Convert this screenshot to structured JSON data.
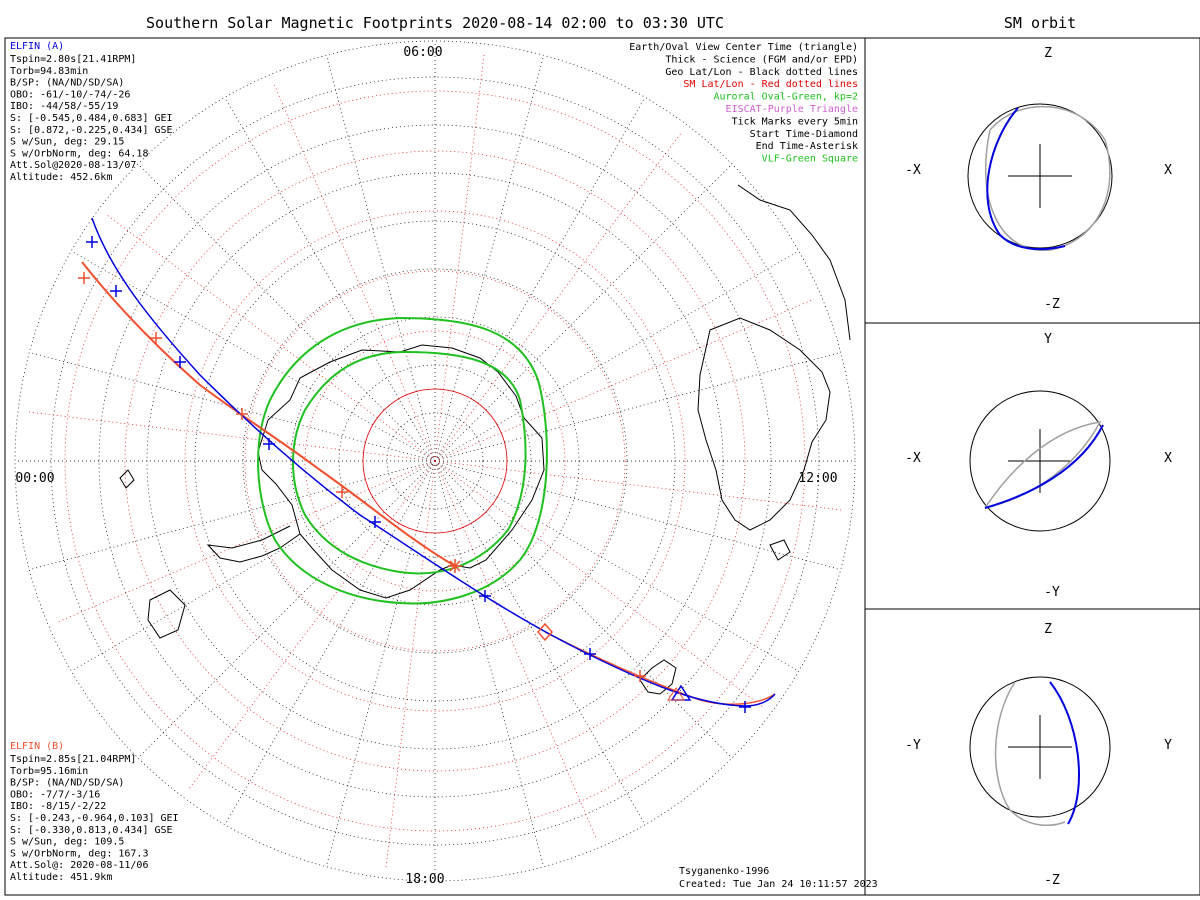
{
  "main_title": "Southern Solar Magnetic Footprints 2020-08-14 02:00 to 03:30 UTC",
  "side_title": "SM orbit",
  "time_labels": {
    "top": "06:00",
    "left": "00:00",
    "right": "12:00",
    "bottom": "18:00"
  },
  "legend": [
    {
      "text": "Earth/Oval View Center Time (triangle)",
      "color": "#000000"
    },
    {
      "text": "Thick - Science (FGM and/or EPD)",
      "color": "#000000"
    },
    {
      "text": "Geo Lat/Lon - Black dotted lines",
      "color": "#000000"
    },
    {
      "text": "SM Lat/Lon - Red dotted lines",
      "color": "#e00000"
    },
    {
      "text": "Auroral Oval-Green, kp=2",
      "color": "#20c020"
    },
    {
      "text": "EISCAT-Purple Triangle",
      "color": "#d060d0"
    },
    {
      "text": "Tick Marks every 5min",
      "color": "#000000"
    },
    {
      "text": "Start Time-Diamond",
      "color": "#000000"
    },
    {
      "text": "End Time-Asterisk",
      "color": "#000000"
    },
    {
      "text": "VLF-Green Square",
      "color": "#20c020"
    }
  ],
  "elfin_a": {
    "name": "ELFIN (A)",
    "color": "#0000e0",
    "lines": [
      "Tspin=2.80s[21.41RPM]",
      "Torb=94.83min",
      "B/SP: (NA/ND/SD/SA)",
      "OBO: -61/-10/-74/-26",
      "IBO: -44/58/-55/19",
      "S: [-0.545,0.484,0.683] GEI",
      "S: [0.872,-0.225,0.434] GSE",
      "S w/Sun, deg: 29.15",
      "S w/OrbNorm, deg: 64.18",
      "Att.Sol@2020-08-13/07",
      "Altitude: 452.6km"
    ]
  },
  "elfin_b": {
    "name": "ELFIN (B)",
    "color": "#f05030",
    "lines": [
      "Tspin=2.85s[21.04RPM]",
      "Torb=95.16min",
      "B/SP: (NA/ND/SD/SA)",
      "OBO: -7/7/-3/16",
      "IBO: -8/15/-2/22",
      "S: [-0.243,-0.964,0.103] GEI",
      "S: [-0.330,0.813,0.434] GSE",
      "S w/Sun, deg: 109.5",
      "S w/OrbNorm, deg: 167.3",
      "Att.Sol@: 2020-08-11/06",
      "Altitude: 451.9km"
    ]
  },
  "footer": {
    "model": "Tsyganenko-1996",
    "created": "Created: Tue Jan 24 10:11:57 2023"
  },
  "orbit_panels": [
    {
      "top": "Z",
      "bottom": "-Z",
      "left": "-X",
      "right": "X"
    },
    {
      "top": "Y",
      "bottom": "-Y",
      "left": "-X",
      "right": "X"
    },
    {
      "top": "Z",
      "bottom": "-Z",
      "left": "-Y",
      "right": "Y"
    }
  ],
  "colors": {
    "elfin_a": "#0000e0",
    "elfin_b": "#f05030",
    "oval": "#20c020",
    "sm_grid": "#e00000",
    "geo_grid": "#000000",
    "orbit_gray": "#a0a0a0"
  }
}
